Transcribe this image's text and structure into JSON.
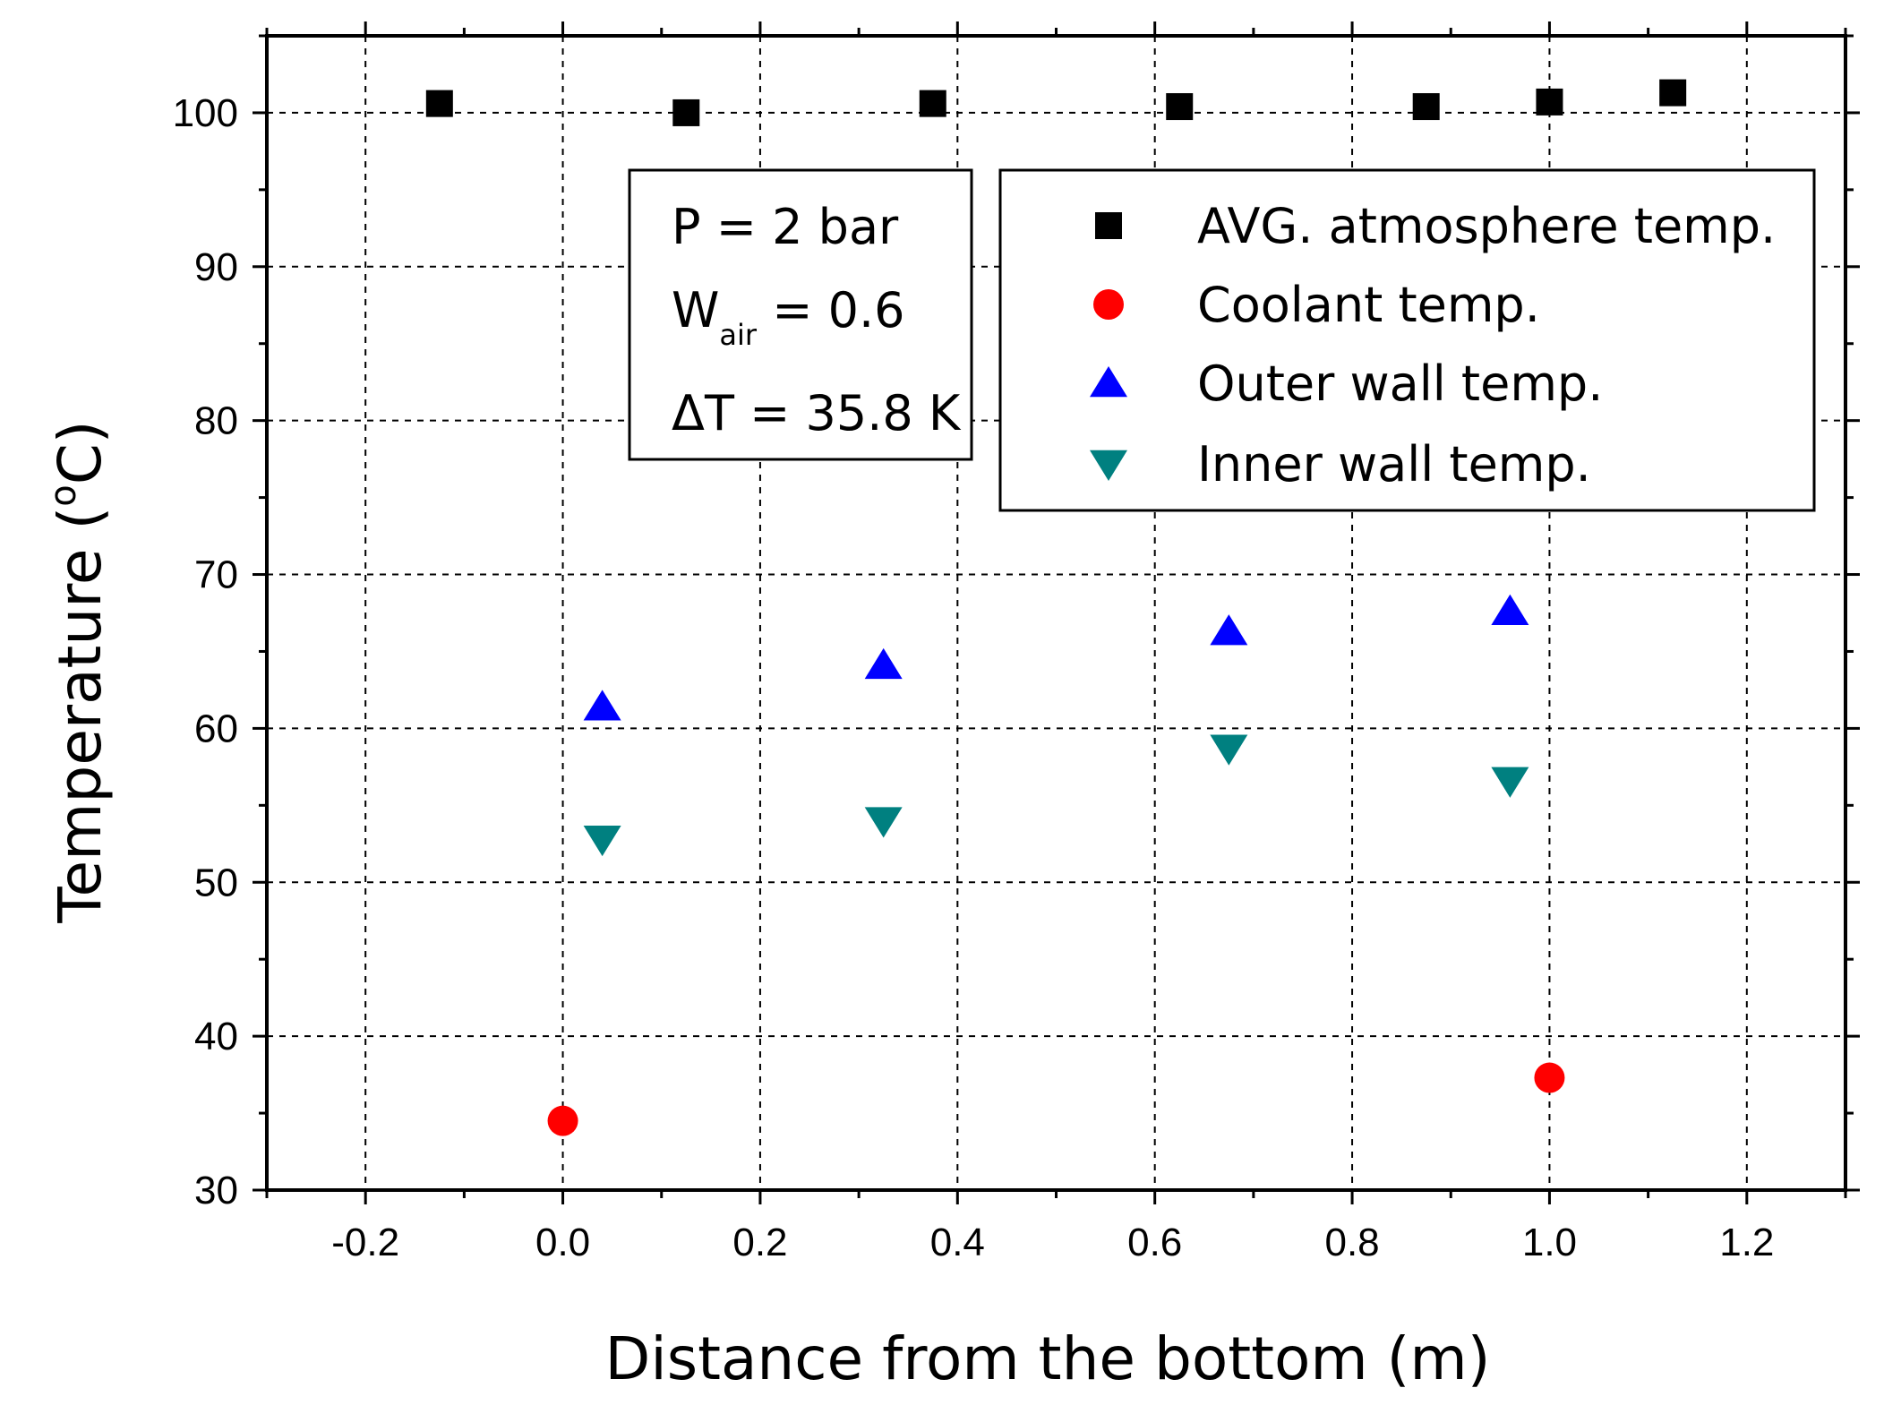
{
  "chart_data": {
    "type": "scatter",
    "xlabel": "Distance from the bottom (m)",
    "ylabel_main": "Temperature (",
    "ylabel_sup": "o",
    "ylabel_end": "C)",
    "xlim": [
      -0.3,
      1.3
    ],
    "ylim": [
      30,
      105
    ],
    "xticks": [
      -0.2,
      0.0,
      0.2,
      0.4,
      0.6,
      0.8,
      1.0,
      1.2
    ],
    "xtick_labels": [
      "-0.2",
      "0.0",
      "0.2",
      "0.4",
      "0.6",
      "0.8",
      "1.0",
      "1.2"
    ],
    "yticks": [
      30,
      40,
      50,
      60,
      70,
      80,
      90,
      100
    ],
    "ytick_labels": [
      "30",
      "40",
      "50",
      "60",
      "70",
      "80",
      "90",
      "100"
    ],
    "grid": true,
    "legend_position": "top-right",
    "series": [
      {
        "name": "AVG. atmosphere temp.",
        "marker": "square",
        "color": "#000000",
        "x": [
          -0.125,
          0.125,
          0.375,
          0.625,
          0.875,
          1.0,
          1.125
        ],
        "y": [
          100.6,
          100.0,
          100.6,
          100.4,
          100.4,
          100.7,
          101.3
        ]
      },
      {
        "name": "Coolant temp.",
        "marker": "circle",
        "color": "#ff0000",
        "x": [
          0.0,
          1.0
        ],
        "y": [
          34.5,
          37.3
        ]
      },
      {
        "name": "Outer wall temp.",
        "marker": "triangle-up",
        "color": "#0000ff",
        "x": [
          0.04,
          0.325,
          0.675,
          0.96
        ],
        "y": [
          61.4,
          64.1,
          66.3,
          67.6
        ]
      },
      {
        "name": "Inner wall temp.",
        "marker": "triangle-down",
        "color": "#008080",
        "x": [
          0.04,
          0.325,
          0.675,
          0.96
        ],
        "y": [
          52.8,
          54.0,
          58.7,
          56.6
        ]
      }
    ],
    "annotation": {
      "line1": "P = 2 bar",
      "line2_main": "W",
      "line2_sub": "air",
      "line2_end": " = 0.6",
      "line3": "ΔT = 35.8 K"
    }
  }
}
